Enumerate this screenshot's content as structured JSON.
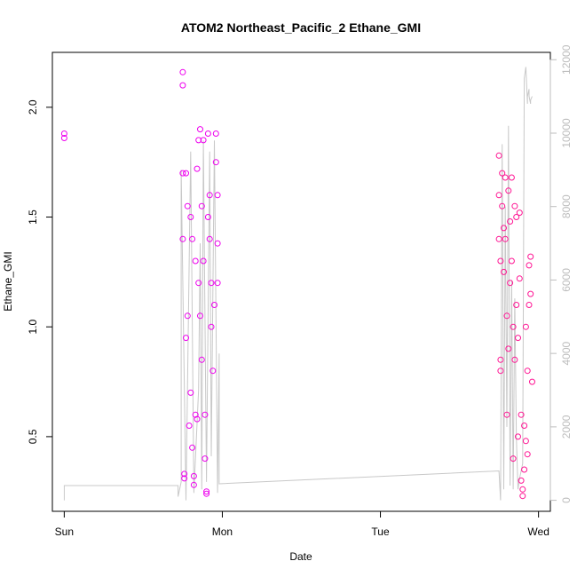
{
  "chart_data": {
    "type": "scatter",
    "title": "ATOM2 Northeast_Pacific_2 Ethane_GMI",
    "xlabel": "Date",
    "ylabel": "Ethane_GMI",
    "x_ticks": [
      "Sun",
      "Mon",
      "Tue",
      "Wed"
    ],
    "x_tick_values": [
      0,
      1,
      2,
      3
    ],
    "xlim": [
      -0.075,
      3.075
    ],
    "ylim": [
      0.16,
      2.25
    ],
    "y_ticks": [
      0.5,
      1.0,
      1.5,
      2.0
    ],
    "y_tick_labels": [
      "0.5",
      "1.0",
      "1.5",
      "2.0"
    ],
    "y2lim": [
      -300,
      12200
    ],
    "y2_ticks": [
      0,
      2000,
      4000,
      6000,
      8000,
      10000,
      12000
    ],
    "y2_tick_labels": [
      "0",
      "2000",
      "4000",
      "6000",
      "8000",
      "10000",
      "12000"
    ],
    "grid": false,
    "colors": {
      "points_first_group": "#ee00ee",
      "points_second_group": "#ff1493",
      "altitude_line": "#c8c8c8",
      "axis": "#000000",
      "right_axis": "#bdbdbd"
    },
    "series": [
      {
        "color": "#ee00ee",
        "values": [
          [
            0.0,
            1.88
          ],
          [
            0.0,
            1.86
          ],
          [
            0.75,
            2.16
          ],
          [
            0.75,
            2.1
          ],
          [
            0.75,
            1.7
          ],
          [
            0.75,
            1.4
          ],
          [
            0.76,
            0.33
          ],
          [
            0.76,
            0.31
          ],
          [
            0.77,
            1.7
          ],
          [
            0.77,
            0.95
          ],
          [
            0.78,
            1.55
          ],
          [
            0.78,
            1.05
          ],
          [
            0.79,
            0.55
          ],
          [
            0.8,
            1.5
          ],
          [
            0.8,
            0.7
          ],
          [
            0.81,
            1.4
          ],
          [
            0.81,
            0.45
          ],
          [
            0.82,
            0.32
          ],
          [
            0.82,
            0.28
          ],
          [
            0.83,
            1.3
          ],
          [
            0.83,
            0.6
          ],
          [
            0.84,
            1.72
          ],
          [
            0.84,
            0.58
          ],
          [
            0.85,
            1.85
          ],
          [
            0.85,
            1.2
          ],
          [
            0.86,
            1.9
          ],
          [
            0.86,
            1.05
          ],
          [
            0.87,
            1.55
          ],
          [
            0.87,
            0.85
          ],
          [
            0.88,
            1.85
          ],
          [
            0.88,
            1.3
          ],
          [
            0.89,
            0.6
          ],
          [
            0.89,
            0.4
          ],
          [
            0.9,
            0.25
          ],
          [
            0.9,
            0.24
          ],
          [
            0.91,
            1.88
          ],
          [
            0.91,
            1.5
          ],
          [
            0.92,
            1.6
          ],
          [
            0.92,
            1.4
          ],
          [
            0.93,
            1.2
          ],
          [
            0.93,
            1.0
          ],
          [
            0.94,
            0.8
          ],
          [
            0.95,
            1.1
          ],
          [
            0.96,
            1.88
          ],
          [
            0.96,
            1.75
          ],
          [
            0.97,
            1.6
          ],
          [
            0.97,
            1.38
          ],
          [
            0.97,
            1.2
          ]
        ]
      },
      {
        "color": "#ff1493",
        "values": [
          [
            2.75,
            1.78
          ],
          [
            2.75,
            1.6
          ],
          [
            2.75,
            1.4
          ],
          [
            2.76,
            1.3
          ],
          [
            2.76,
            0.85
          ],
          [
            2.76,
            0.8
          ],
          [
            2.77,
            1.7
          ],
          [
            2.77,
            1.55
          ],
          [
            2.78,
            1.45
          ],
          [
            2.78,
            1.25
          ],
          [
            2.79,
            1.68
          ],
          [
            2.79,
            1.4
          ],
          [
            2.8,
            1.05
          ],
          [
            2.8,
            0.6
          ],
          [
            2.81,
            1.62
          ],
          [
            2.81,
            0.9
          ],
          [
            2.82,
            1.48
          ],
          [
            2.82,
            1.2
          ],
          [
            2.83,
            1.68
          ],
          [
            2.83,
            1.3
          ],
          [
            2.84,
            1.0
          ],
          [
            2.84,
            0.4
          ],
          [
            2.85,
            1.55
          ],
          [
            2.85,
            0.85
          ],
          [
            2.86,
            1.5
          ],
          [
            2.86,
            1.1
          ],
          [
            2.87,
            0.95
          ],
          [
            2.87,
            0.5
          ],
          [
            2.88,
            1.52
          ],
          [
            2.88,
            1.22
          ],
          [
            2.89,
            0.6
          ],
          [
            2.89,
            0.3
          ],
          [
            2.9,
            0.23
          ],
          [
            2.9,
            0.26
          ],
          [
            2.91,
            0.55
          ],
          [
            2.91,
            0.35
          ],
          [
            2.92,
            1.0
          ],
          [
            2.92,
            0.48
          ],
          [
            2.93,
            0.8
          ],
          [
            2.93,
            0.42
          ],
          [
            2.94,
            1.28
          ],
          [
            2.94,
            1.1
          ],
          [
            2.95,
            1.32
          ],
          [
            2.95,
            1.15
          ],
          [
            2.96,
            0.75
          ]
        ]
      }
    ],
    "altitude_line": {
      "axis": "right",
      "x": [
        0.0,
        0.0,
        0.72,
        0.72,
        0.74,
        0.74,
        0.77,
        0.8,
        0.82,
        0.85,
        0.86,
        0.87,
        0.88,
        0.89,
        0.9,
        0.92,
        0.93,
        0.95,
        0.97,
        0.98,
        0.98,
        2.75,
        2.76,
        2.77,
        2.78,
        2.79,
        2.8,
        2.81,
        2.82,
        2.83,
        2.84,
        2.85,
        2.86,
        2.87,
        2.88,
        2.89,
        2.9,
        2.91,
        2.92,
        2.93,
        2.93,
        2.94,
        2.94,
        2.95,
        2.95,
        2.96
      ],
      "y": [
        0,
        400,
        400,
        100,
        500,
        9000,
        0,
        9500,
        200,
        3000,
        7000,
        300,
        9800,
        5000,
        500,
        9500,
        1200,
        9800,
        200,
        4000,
        450,
        800,
        0,
        9700,
        300,
        8000,
        2000,
        10200,
        400,
        6000,
        300,
        5500,
        1700,
        300,
        600,
        800,
        1000,
        11500,
        11800,
        10800,
        11000,
        11200,
        11000,
        10800,
        10900,
        11000
      ]
    }
  }
}
